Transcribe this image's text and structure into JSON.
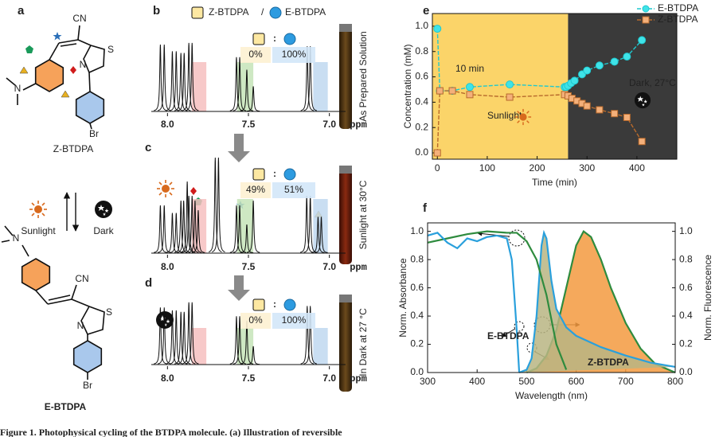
{
  "panels": {
    "a": "a",
    "b": "b",
    "c": "c",
    "d": "d",
    "e": "e",
    "f": "f"
  },
  "structures": {
    "atoms": {
      "cn": "CN",
      "s": "S",
      "n": "N",
      "br": "Br"
    },
    "z_name": "Z-BTDPA",
    "e_name": "E-BTDPA",
    "sunlight": "Sunlight",
    "dark": "Dark"
  },
  "nmr": {
    "legend": {
      "z": "Z-BTDPA",
      "sep": "/",
      "e": "E-BTDPA"
    },
    "xlim": [
      8.1,
      6.9
    ],
    "xticks": [
      {
        "value": 8,
        "label": "8.0"
      },
      {
        "value": 7.5,
        "label": "7.5"
      },
      {
        "value": 7,
        "label": "7.0"
      }
    ],
    "unit": "ppm",
    "highlights": [
      {
        "from": 7.85,
        "to": 7.76,
        "color": "#f6c0c0"
      },
      {
        "from": 7.57,
        "to": 7.47,
        "color": "#c6e4b8"
      },
      {
        "from": 7.1,
        "to": 7.01,
        "color": "#c0d8f0"
      }
    ],
    "spectra": [
      {
        "z": "0%",
        "sep": ":",
        "e": "100%",
        "note": "As Prepared Solution",
        "ppm": [
          8.044,
          8.02,
          7.97,
          7.946,
          7.917,
          7.897,
          7.868,
          7.848,
          7.574,
          7.554,
          7.51,
          7.47,
          7.137,
          7.118
        ],
        "height": [
          0.8,
          0.8,
          0.72,
          0.72,
          0.7,
          0.7,
          0.82,
          0.82,
          0.65,
          0.65,
          0.5,
          0.3,
          0.78,
          0.78
        ]
      },
      {
        "z": "49%",
        "sep": ":",
        "e": "51%",
        "note": "Sunlight at 30°C",
        "ppm": [
          8.044,
          8.02,
          7.97,
          7.946,
          7.917,
          7.9,
          7.878,
          7.868,
          7.848,
          7.83,
          7.81,
          7.705,
          7.685,
          7.574,
          7.554,
          7.51,
          7.47,
          7.14,
          7.118,
          7.07,
          7.05
        ],
        "height": [
          0.5,
          0.5,
          0.42,
          0.42,
          0.55,
          0.55,
          0.75,
          0.6,
          0.6,
          0.55,
          0.45,
          1.0,
          1.0,
          0.5,
          0.5,
          0.3,
          0.55,
          0.6,
          0.6,
          0.38,
          0.38
        ]
      },
      {
        "z": "0%",
        "sep": ":",
        "e": "100%",
        "note": "In Dark at 27 °C",
        "ppm": [
          8.044,
          8.02,
          7.97,
          7.946,
          7.917,
          7.897,
          7.868,
          7.848,
          7.574,
          7.554,
          7.51,
          7.47,
          7.137,
          7.118
        ],
        "height": [
          0.78,
          0.78,
          0.74,
          0.74,
          0.72,
          0.72,
          0.85,
          0.85,
          0.66,
          0.66,
          0.6,
          0.25,
          0.8,
          0.8
        ]
      }
    ]
  },
  "chart_data": [
    {
      "type": "line",
      "xlabel": "Time (min)",
      "ylabel": "Concentration (mM)",
      "xlim": [
        -10,
        480
      ],
      "ylim": [
        -0.05,
        1.1
      ],
      "xticks": [
        0,
        100,
        200,
        300,
        400
      ],
      "yticks": [
        {
          "value": 0,
          "label": "0.0"
        },
        {
          "value": 0.2,
          "label": "0.2"
        },
        {
          "value": 0.4,
          "label": "0.4"
        },
        {
          "value": 0.6,
          "label": "0.6"
        },
        {
          "value": 0.8,
          "label": "0.8"
        },
        {
          "value": 1,
          "label": "1.0"
        }
      ],
      "regions": [
        {
          "to": 262,
          "color": "#fbd469"
        },
        {
          "from": 262,
          "color": "#3a3a3a"
        }
      ],
      "legend": "top-right",
      "series": [
        {
          "name": "E-BTDPA",
          "color": "#1fc8cf",
          "marker": "circle",
          "marker_fill": "#3fe3e8",
          "x": [
            0,
            5,
            30,
            65,
            145,
            255,
            258,
            262,
            268,
            275,
            290,
            300,
            325,
            355,
            380,
            410
          ],
          "values": [
            0.98,
            0.49,
            0.49,
            0.52,
            0.54,
            0.52,
            0.52,
            0.53,
            0.55,
            0.57,
            0.62,
            0.65,
            0.69,
            0.72,
            0.76,
            0.89
          ]
        },
        {
          "name": "Z-BTDPA",
          "color": "#b86a2c",
          "marker": "square",
          "marker_fill": "#f4b07a",
          "x": [
            0,
            5,
            30,
            65,
            145,
            255,
            262,
            270,
            280,
            290,
            300,
            325,
            355,
            380,
            410
          ],
          "values": [
            0,
            0.49,
            0.49,
            0.46,
            0.44,
            0.46,
            0.45,
            0.43,
            0.41,
            0.39,
            0.37,
            0.34,
            0.31,
            0.28,
            0.09
          ]
        }
      ],
      "annotations": [
        "10 min",
        "Sunlight",
        "Dark, 27°C"
      ]
    },
    {
      "type": "area",
      "xlabel": "Wavelength (nm)",
      "ylabel": "Norm. Absorbance",
      "y2label": "Norm. Fluorescence",
      "xlim": [
        300,
        800
      ],
      "ylim": [
        0,
        1.06
      ],
      "y2lim": [
        0,
        1.06
      ],
      "xticks": [
        300,
        400,
        500,
        600,
        700,
        800
      ],
      "yticks": [
        {
          "value": 0,
          "label": "0.0"
        },
        {
          "value": 0.2,
          "label": "0.2"
        },
        {
          "value": 0.4,
          "label": "0.4"
        },
        {
          "value": 0.6,
          "label": "0.6"
        },
        {
          "value": 0.8,
          "label": "0.8"
        },
        {
          "value": 1,
          "label": "1.0"
        }
      ],
      "y2ticks": [
        {
          "value": 0,
          "label": "0.0"
        },
        {
          "value": 0.2,
          "label": "0.2"
        },
        {
          "value": 0.4,
          "label": "0.4"
        },
        {
          "value": 0.6,
          "label": "0.6"
        },
        {
          "value": 0.8,
          "label": "0.8"
        },
        {
          "value": 1,
          "label": "1.0"
        }
      ],
      "series": [
        {
          "color": "#2e8b3e",
          "fill": "#f39a3f",
          "axis": "y2",
          "x": [
            500,
            520,
            540,
            560,
            580,
            600,
            615,
            630,
            650,
            670,
            700,
            730,
            760,
            800
          ],
          "values": [
            0,
            0.03,
            0.12,
            0.3,
            0.6,
            0.9,
            1.0,
            0.96,
            0.8,
            0.6,
            0.35,
            0.17,
            0.06,
            0
          ]
        },
        {
          "color": "#2aa0dc",
          "fill": "#b9b583",
          "axis": "y2",
          "x": [
            485,
            500,
            510,
            520,
            530,
            535,
            540,
            550,
            560,
            580,
            600,
            650,
            700,
            750,
            800
          ],
          "values": [
            0,
            0.02,
            0.1,
            0.4,
            0.9,
            0.99,
            0.95,
            0.65,
            0.45,
            0.32,
            0.26,
            0.18,
            0.12,
            0.07,
            0.04
          ]
        },
        {
          "color": "#2e8b3e",
          "x": [
            300,
            340,
            380,
            420,
            460,
            480,
            500,
            520,
            540,
            560,
            580
          ],
          "values": [
            0.92,
            0.95,
            0.98,
            1.0,
            0.99,
            0.99,
            0.93,
            0.8,
            0.55,
            0.2,
            0.02
          ]
        },
        {
          "color": "#2aa0dc",
          "x": [
            300,
            320,
            340,
            360,
            380,
            400,
            420,
            440,
            460,
            470,
            480,
            485
          ],
          "values": [
            0.97,
            0.99,
            0.92,
            0.88,
            0.95,
            0.93,
            0.96,
            0.97,
            0.95,
            0.8,
            0.3,
            0
          ]
        }
      ],
      "annotations": [
        "E-BTDPA",
        "Z-BTDPA"
      ]
    }
  ],
  "caption": "Figure 1. Photophysical cycling of the BTDPA molecule. (a) Illustration of reversible"
}
